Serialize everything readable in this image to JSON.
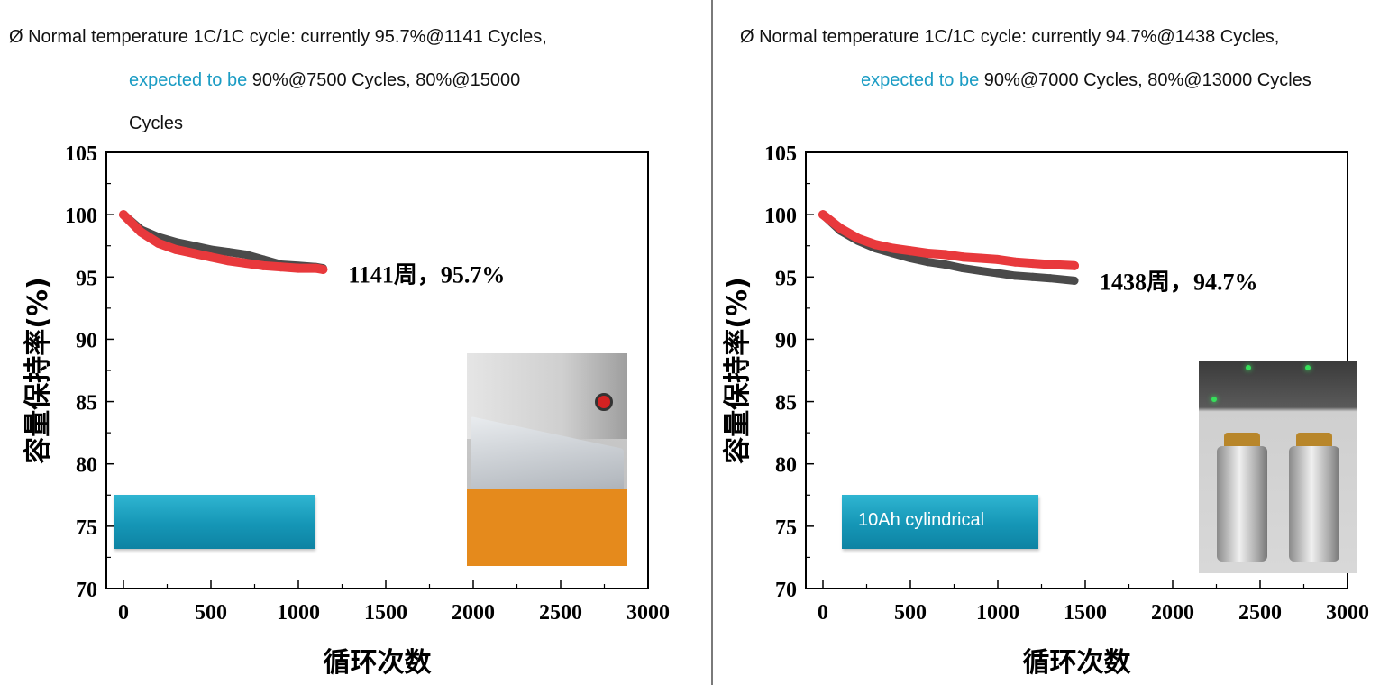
{
  "colors": {
    "series_dark": "#4a4a4a",
    "series_red": "#e8393c",
    "accent": "#1b9cc4",
    "callout": "#1596b6"
  },
  "panels": [
    {
      "note": {
        "line1": "Ø Normal temperature 1C/1C cycle: currently 95.7%@1141 Cycles,",
        "line2_accent": "expected to be",
        "line2_rest": " 90%@7500 Cycles, 80%@15000",
        "line3": "Cycles"
      },
      "callout_label": "",
      "photo": "pouch-cell-on-test-fixture",
      "chart_data": {
        "type": "line",
        "xlabel": "循环次数",
        "ylabel": "容量保持率(%)",
        "xlim": [
          0,
          3000
        ],
        "ylim": [
          70,
          105
        ],
        "x_ticks": [
          "0",
          "500",
          "1000",
          "1500",
          "2000",
          "2500",
          "3000"
        ],
        "y_ticks": [
          "70",
          "75",
          "80",
          "85",
          "90",
          "95",
          "100",
          "105"
        ],
        "annotation": "1141周，95.7%",
        "grid": false,
        "series": [
          {
            "color": "#4a4a4a",
            "x": [
              0,
              100,
              200,
              300,
              400,
              500,
              600,
              700,
              800,
              900,
              1000,
              1100,
              1141
            ],
            "y": [
              100,
              98.8,
              98.2,
              97.8,
              97.5,
              97.2,
              97.0,
              96.8,
              96.4,
              96.0,
              95.9,
              95.8,
              95.7
            ]
          },
          {
            "color": "#e8393c",
            "x": [
              0,
              100,
              200,
              300,
              400,
              500,
              600,
              700,
              800,
              900,
              1000,
              1100,
              1141
            ],
            "y": [
              100,
              98.6,
              97.7,
              97.2,
              96.9,
              96.6,
              96.3,
              96.1,
              95.9,
              95.8,
              95.7,
              95.7,
              95.6
            ]
          }
        ]
      }
    },
    {
      "note": {
        "line1": "Ø Normal temperature 1C/1C cycle: currently 94.7%@1438 Cycles,",
        "line2_accent": "expected to be",
        "line2_rest": " 90%@7000 Cycles, 80%@13000 Cycles",
        "line3": ""
      },
      "callout_label": "10Ah cylindrical",
      "photo": "cylindrical-cells-on-test-fixture",
      "chart_data": {
        "type": "line",
        "xlabel": "循环次数",
        "ylabel": "容量保持率(%)",
        "xlim": [
          0,
          3000
        ],
        "ylim": [
          70,
          105
        ],
        "x_ticks": [
          "0",
          "500",
          "1000",
          "1500",
          "2000",
          "2500",
          "3000"
        ],
        "y_ticks": [
          "70",
          "75",
          "80",
          "85",
          "90",
          "95",
          "100",
          "105"
        ],
        "annotation": "1438周，94.7%",
        "grid": false,
        "series": [
          {
            "color": "#4a4a4a",
            "x": [
              0,
              100,
              200,
              300,
              400,
              500,
              600,
              700,
              800,
              900,
              1000,
              1100,
              1200,
              1300,
              1438
            ],
            "y": [
              100,
              98.7,
              97.9,
              97.3,
              96.9,
              96.5,
              96.2,
              96.0,
              95.7,
              95.5,
              95.3,
              95.1,
              95.0,
              94.9,
              94.7
            ]
          },
          {
            "color": "#e8393c",
            "x": [
              0,
              100,
              200,
              300,
              400,
              500,
              600,
              700,
              800,
              900,
              1000,
              1100,
              1200,
              1300,
              1438
            ],
            "y": [
              100,
              98.9,
              98.1,
              97.6,
              97.3,
              97.1,
              96.9,
              96.8,
              96.6,
              96.5,
              96.4,
              96.2,
              96.1,
              96.0,
              95.9
            ]
          }
        ]
      }
    }
  ]
}
